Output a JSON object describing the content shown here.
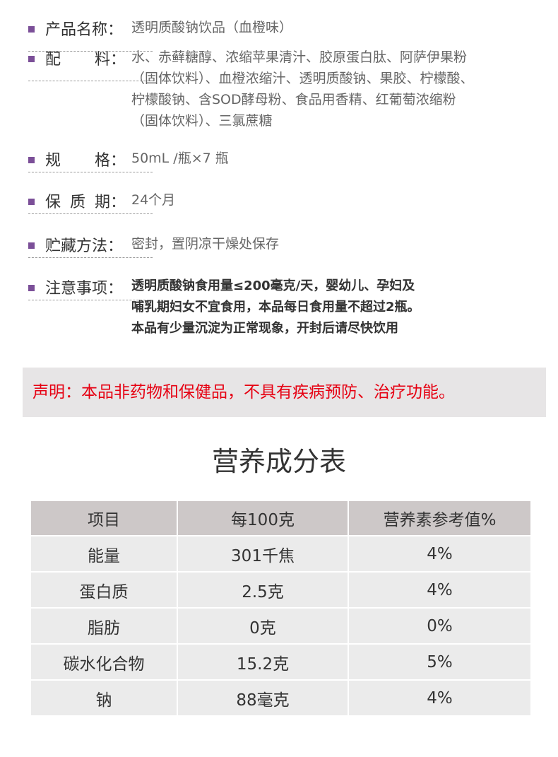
{
  "specs": [
    {
      "label": "产品名称：",
      "lines": [
        "透明质酸钠饮品（血橙味）"
      ]
    },
    {
      "label_a": "配",
      "label_b": "料：",
      "lines": [
        "水、赤藓糖醇、浓缩苹果清汁、胶原蛋白肽、阿萨伊果粉",
        "（固体饮料）、血橙浓缩汁、透明质酸钠、果胶、柠檬酸、",
        "柠檬酸钠、含SOD酵母粉、食品用香精、红葡萄浓缩粉",
        "（固体饮料）、三氯蔗糖"
      ]
    },
    {
      "label_a": "规",
      "label_b": "格：",
      "lines": [
        "50mL /瓶×7 瓶"
      ]
    },
    {
      "label_a": "保",
      "label_m": "质",
      "label_b": "期：",
      "lines": [
        "24个月"
      ]
    },
    {
      "label": "贮藏方法：",
      "lines": [
        "密封，置阴凉干燥处保存"
      ]
    },
    {
      "label": "注意事项：",
      "lines": [
        "透明质酸钠食用量≤200毫克/天，婴幼儿、孕妇及",
        "哺乳期妇女不宜食用，本品每日食用量不超过2瓶。",
        "本品有少量沉淀为正常现象，开封后请尽快饮用"
      ]
    }
  ],
  "notice": "声明：本品非药物和保健品，不具有疾病预防、治疗功能。",
  "nutrition": {
    "title": "营养成分表",
    "headers": [
      "项目",
      "每100克",
      "营养素参考值%"
    ],
    "rows": [
      [
        "能量",
        "301千焦",
        "4%"
      ],
      [
        "蛋白质",
        "2.5克",
        "4%"
      ],
      [
        "脂肪",
        "0克",
        "0%"
      ],
      [
        "碳水化合物",
        "15.2克",
        "5%"
      ],
      [
        "钠",
        "88毫克",
        "4%"
      ]
    ]
  },
  "colors": {
    "bullet": "#7b4f98",
    "notice": "#e60012",
    "header_bg": "#cdc8c8",
    "cell_bg": "#ebebeb"
  }
}
